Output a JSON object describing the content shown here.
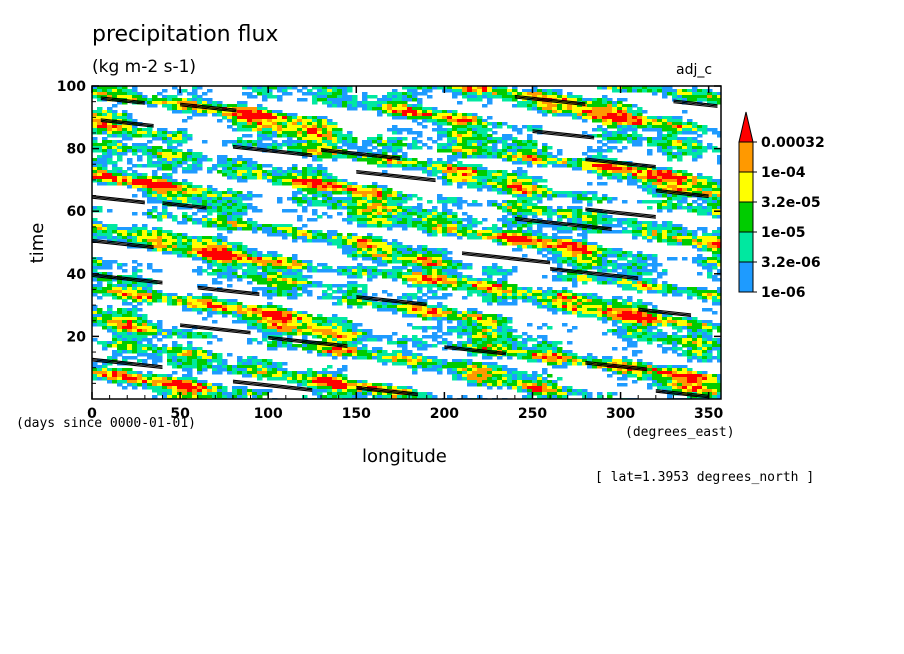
{
  "chart_data": {
    "type": "heatmap",
    "title": "precipitation flux",
    "units": "(kg m-2 s-1)",
    "dataset_tag": "adj_c",
    "xlabel": "longitude",
    "x_units": "(degrees_east)",
    "ylabel": "time",
    "y_units": "(days since 0000-01-01)",
    "footnote": "[ lat=1.3953 degrees_north ]",
    "xlim": [
      0,
      357
    ],
    "ylim": [
      0,
      100
    ],
    "x_ticks": [
      "0",
      "50",
      "100",
      "150",
      "200",
      "250",
      "300",
      "350"
    ],
    "y_ticks": [
      "20",
      "40",
      "60",
      "80",
      "100"
    ],
    "x_tick_values": [
      0,
      50,
      100,
      150,
      200,
      250,
      300,
      350
    ],
    "y_tick_values": [
      20,
      40,
      60,
      80,
      100
    ],
    "colorbar": {
      "levels": [
        "1e-06",
        "3.2e-06",
        "1e-05",
        "3.2e-05",
        "1e-04",
        "0.00032"
      ],
      "colors": [
        "#1e9bff",
        "#00e8a0",
        "#00cc00",
        "#ffff00",
        "#ff9900",
        "#ff0000"
      ],
      "extend": "max"
    },
    "black_streaks": [
      {
        "lon": 5,
        "t": 96.5,
        "len": 25
      },
      {
        "lon": 50,
        "t": 94.5,
        "len": 32
      },
      {
        "lon": 240,
        "t": 97,
        "len": 40
      },
      {
        "lon": 330,
        "t": 95.5,
        "len": 25
      },
      {
        "lon": 5,
        "t": 89.5,
        "len": 30
      },
      {
        "lon": 80,
        "t": 81,
        "len": 45
      },
      {
        "lon": 130,
        "t": 80,
        "len": 45
      },
      {
        "lon": 250,
        "t": 86,
        "len": 35
      },
      {
        "lon": 280,
        "t": 77,
        "len": 40
      },
      {
        "lon": 150,
        "t": 73,
        "len": 45
      },
      {
        "lon": 320,
        "t": 67,
        "len": 30
      },
      {
        "lon": 0,
        "t": 65,
        "len": 30
      },
      {
        "lon": 40,
        "t": 63,
        "len": 25
      },
      {
        "lon": 280,
        "t": 61,
        "len": 40
      },
      {
        "lon": 240,
        "t": 58,
        "len": 55
      },
      {
        "lon": 0,
        "t": 51,
        "len": 35
      },
      {
        "lon": 210,
        "t": 47,
        "len": 50
      },
      {
        "lon": 260,
        "t": 42,
        "len": 50
      },
      {
        "lon": 0,
        "t": 40,
        "len": 40
      },
      {
        "lon": 60,
        "t": 36,
        "len": 35
      },
      {
        "lon": 150,
        "t": 33,
        "len": 40
      },
      {
        "lon": 310,
        "t": 29,
        "len": 30
      },
      {
        "lon": 50,
        "t": 24,
        "len": 40
      },
      {
        "lon": 100,
        "t": 20,
        "len": 45
      },
      {
        "lon": 200,
        "t": 17,
        "len": 35
      },
      {
        "lon": 0,
        "t": 13,
        "len": 40
      },
      {
        "lon": 280,
        "t": 12,
        "len": 35
      },
      {
        "lon": 80,
        "t": 6,
        "len": 45
      },
      {
        "lon": 150,
        "t": 4,
        "len": 35
      },
      {
        "lon": 320,
        "t": 3,
        "len": 30
      }
    ]
  }
}
